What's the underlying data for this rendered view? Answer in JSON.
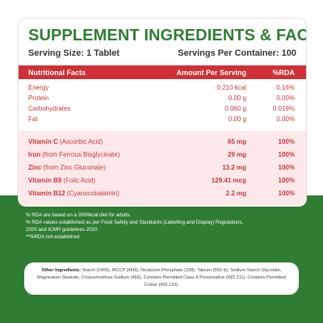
{
  "title": "SUPPLEMENT INGREDIENTS & FACTS",
  "serving_size": "Serving Size: 1 Tablet",
  "servings_per_container": "Servings Per Container: 100",
  "table_header": {
    "col1": "Nutritional Facts",
    "col2": "Amount Per Serving",
    "col3": "%RDA"
  },
  "macros": [
    {
      "name": "Energy",
      "amount": "0.210 kcal",
      "rda": "0.16%"
    },
    {
      "name": "Protein",
      "amount": "0.00 g",
      "rda": "0.00%"
    },
    {
      "name": "Carbohydrates",
      "amount": "0.060 g",
      "rda": "0.019%"
    },
    {
      "name": "Fat",
      "amount": "0.00 g",
      "rda": "0.00%"
    }
  ],
  "vitamins": [
    {
      "name": "Vitamin C",
      "source": " (Ascorbic Acid)",
      "amount": "65 mg",
      "rda": "100%"
    },
    {
      "name": "Iron",
      "source": " (from Ferrous Bisglycinate)",
      "amount": "29 mg",
      "rda": "100%"
    },
    {
      "name": "Zinc",
      "source": " (from Zinc Gluconate)",
      "amount": "13.2 mg",
      "rda": "100%"
    },
    {
      "name": "Vitamin B9",
      "source": " (Folic Acid)",
      "amount": "129.41 mcg",
      "rda": "100%"
    },
    {
      "name": "Vitamin B12",
      "source": " (Cyanocobalamin)",
      "amount": "2.2 mg",
      "rda": "100%"
    }
  ],
  "footnotes": [
    "% RDA are based on a 2000kcal diet for adults.",
    "% RDA values established as per Food Safety and Standards (Labelling and Display) Regulations,",
    "2020 and ICMR guidelines 2020.",
    "**%RDA not established"
  ],
  "ingredients": {
    "label": "Other Ingredients: ",
    "text": "Starch (1405), MCCP (460i), Dicalcium Phosphate (338), Talcum (553-iii), Sodium Starch Glycolate, Magnesium Stearate, Croscarmellose Sodium (466), Contains Permitted Class II Preservative (INS 211), Contains Permitted Colour (INS 110)."
  },
  "colors": {
    "brand_green": "#2f7d32",
    "header_red": "#cf2f36",
    "row_text_red": "#c9353c",
    "vitamin_bg": "#fde9e9"
  }
}
